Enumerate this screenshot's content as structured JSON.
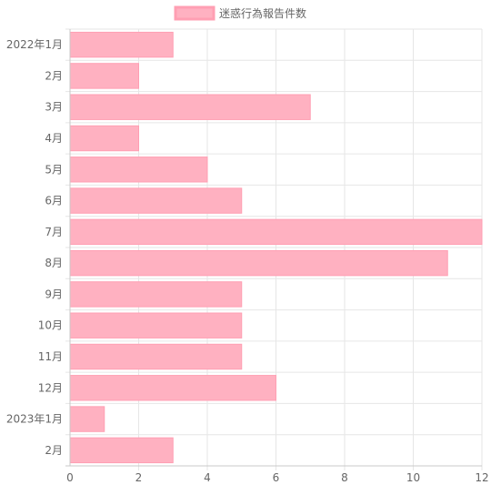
{
  "chart_data": {
    "type": "bar",
    "orientation": "horizontal",
    "categories": [
      "2022年1月",
      "2月",
      "3月",
      "4月",
      "5月",
      "6月",
      "7月",
      "8月",
      "9月",
      "10月",
      "11月",
      "12月",
      "2023年1月",
      "2月"
    ],
    "series": [
      {
        "name": "迷惑行為報告件数",
        "values": [
          3,
          2,
          7,
          2,
          4,
          5,
          12,
          11,
          5,
          5,
          5,
          6,
          1,
          3
        ],
        "color": "#ffb1c1",
        "border_color": "#ff9fb3"
      }
    ],
    "xlim": [
      0,
      12
    ],
    "x_ticks": [
      0,
      2,
      4,
      6,
      8,
      10,
      12
    ],
    "grid": true,
    "legend_position": "top"
  }
}
